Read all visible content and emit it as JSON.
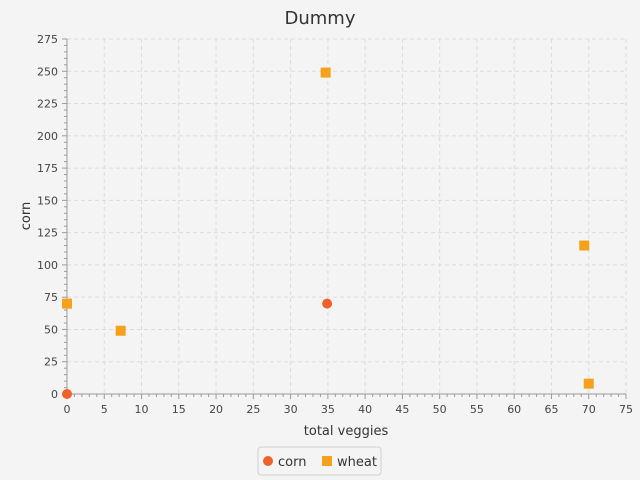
{
  "chart_data": {
    "type": "scatter",
    "title": "Dummy",
    "xlabel": "total veggies",
    "ylabel": "corn",
    "xlim": [
      0,
      75
    ],
    "ylim": [
      0,
      275
    ],
    "xticks": [
      0,
      5,
      10,
      15,
      20,
      25,
      30,
      35,
      40,
      45,
      50,
      55,
      60,
      65,
      70,
      75
    ],
    "yticks": [
      0,
      25,
      50,
      75,
      100,
      125,
      150,
      175,
      200,
      225,
      250,
      275
    ],
    "grid": true,
    "legend_position": "bottom",
    "series": [
      {
        "name": "corn",
        "marker": "circle",
        "color": "#f0602a",
        "points": [
          {
            "x": 0,
            "y": 0
          },
          {
            "x": 34.9,
            "y": 70
          }
        ]
      },
      {
        "name": "wheat",
        "marker": "square",
        "color": "#f5a11c",
        "points": [
          {
            "x": 0,
            "y": 70
          },
          {
            "x": 7.2,
            "y": 49
          },
          {
            "x": 34.7,
            "y": 249
          },
          {
            "x": 69.4,
            "y": 115
          },
          {
            "x": 70,
            "y": 8
          }
        ]
      }
    ]
  }
}
